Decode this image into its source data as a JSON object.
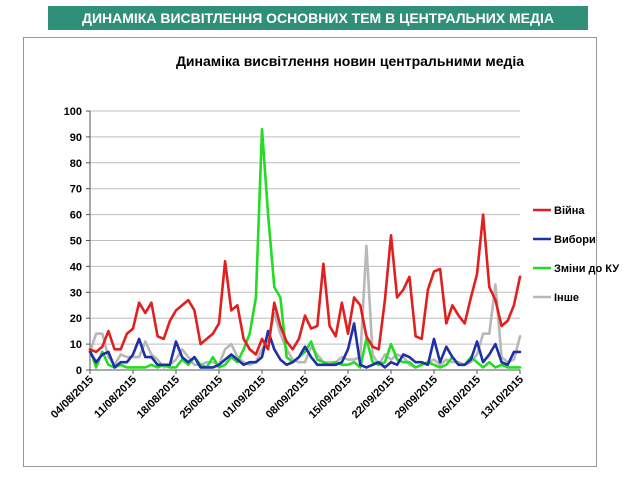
{
  "header": {
    "banner": "ДИНАМІКА ВИСВІТЛЕННЯ ОСНОВНИХ ТЕМ В ЦЕНТРАЛЬНИХ МЕДІА"
  },
  "chart_data": {
    "type": "line",
    "title": "Динаміка висвітлення новин центральними медіа",
    "xlabel": "",
    "ylabel": "",
    "ylim": [
      0,
      100
    ],
    "yticks": [
      "0",
      "10",
      "20",
      "30",
      "40",
      "50",
      "60",
      "70",
      "80",
      "90",
      "100"
    ],
    "xtick_labels": [
      "04/08/2015",
      "11/08/2015",
      "18/08/2015",
      "25/08/2015",
      "01/09/2015",
      "08/09/2015",
      "15/09/2015",
      "22/09/2015",
      "29/09/2015",
      "06/10/2015",
      "13/10/2015"
    ],
    "legend_position": "right",
    "grid": true,
    "series": [
      {
        "name": "Війна",
        "color": "#e0201e",
        "values": [
          8,
          7,
          9,
          15,
          8,
          8,
          14,
          16,
          26,
          22,
          26,
          13,
          12,
          19,
          23,
          25,
          27,
          23,
          10,
          12,
          14,
          18,
          42,
          23,
          25,
          12,
          8,
          6,
          12,
          8,
          26,
          17,
          11,
          8,
          12,
          21,
          16,
          17,
          41,
          17,
          13,
          26,
          14,
          28,
          25,
          13,
          9,
          8,
          27,
          52,
          28,
          31,
          36,
          13,
          12,
          31,
          38,
          39,
          18,
          25,
          21,
          18,
          28,
          37,
          60,
          32,
          27,
          17,
          19,
          25,
          36
        ]
      },
      {
        "name": "Вибори",
        "color": "#1e2fa8",
        "values": [
          7,
          3,
          6,
          7,
          1,
          3,
          3,
          6,
          12,
          5,
          5,
          2,
          2,
          2,
          11,
          5,
          3,
          5,
          1,
          1,
          1,
          2,
          4,
          6,
          4,
          2,
          3,
          3,
          5,
          15,
          8,
          4,
          2,
          3,
          5,
          9,
          5,
          2,
          2,
          2,
          2,
          3,
          8,
          18,
          2,
          1,
          2,
          3,
          1,
          3,
          2,
          6,
          5,
          3,
          3,
          2,
          12,
          3,
          9,
          5,
          2,
          2,
          4,
          11,
          3,
          6,
          10,
          3,
          2,
          7,
          7
        ]
      },
      {
        "name": "Зміни до КУ",
        "color": "#22dd22",
        "values": [
          8,
          1,
          7,
          2,
          1,
          2,
          1,
          1,
          1,
          1,
          2,
          1,
          2,
          1,
          1,
          4,
          2,
          5,
          2,
          1,
          5,
          1,
          2,
          5,
          3,
          8,
          14,
          28,
          93,
          60,
          32,
          28,
          5,
          3,
          5,
          7,
          11,
          4,
          3,
          2,
          3,
          2,
          2,
          3,
          1,
          12,
          3,
          2,
          3,
          10,
          4,
          3,
          3,
          1,
          2,
          3,
          2,
          1,
          2,
          5,
          2,
          2,
          5,
          3,
          1,
          3,
          1,
          2,
          1,
          1,
          1
        ]
      },
      {
        "name": "Інше",
        "color": "#b8b8b8",
        "values": [
          7,
          14,
          14,
          5,
          2,
          6,
          5,
          5,
          5,
          11,
          6,
          4,
          1,
          2,
          4,
          8,
          5,
          2,
          2,
          3,
          3,
          2,
          8,
          10,
          5,
          3,
          2,
          3,
          8,
          12,
          22,
          14,
          8,
          4,
          3,
          3,
          9,
          6,
          3,
          3,
          3,
          5,
          4,
          4,
          5,
          48,
          6,
          2,
          6,
          4,
          6,
          5,
          2,
          1,
          2,
          3,
          4,
          2,
          4,
          3,
          3,
          2,
          3,
          6,
          14,
          14,
          33,
          5,
          3,
          4,
          13
        ]
      }
    ]
  }
}
